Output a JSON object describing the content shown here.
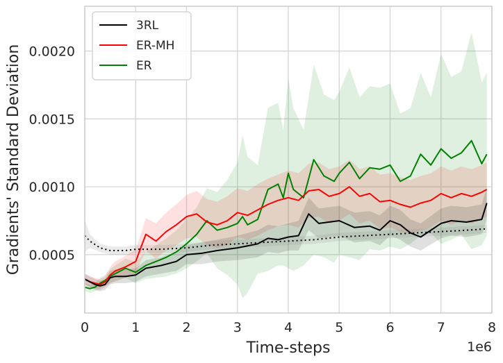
{
  "chart_data": {
    "type": "line",
    "xlabel": "Time-steps",
    "ylabel": "Gradients' Standard Deviation",
    "x_offset_label": "1e6",
    "xlim": [
      0,
      8
    ],
    "ylim": [
      7e-05,
      0.00233
    ],
    "xticks": [
      0,
      1,
      2,
      3,
      4,
      5,
      6,
      7,
      8
    ],
    "xtick_labels": [
      "0",
      "1",
      "2",
      "3",
      "4",
      "5",
      "6",
      "7",
      "8"
    ],
    "yticks": [
      0.0005,
      0.001,
      0.0015,
      0.002
    ],
    "ytick_labels": [
      "0.0005",
      "0.0010",
      "0.0015",
      "0.0020"
    ],
    "grid": true,
    "legend_position": "top-left",
    "series": [
      {
        "name": "3RL",
        "color": "#000000",
        "x": [
          0,
          0.1,
          0.2,
          0.3,
          0.4,
          0.5,
          0.6,
          0.8,
          1.0,
          1.2,
          1.5,
          1.8,
          2.0,
          2.3,
          2.6,
          3.0,
          3.4,
          3.6,
          3.8,
          4.0,
          4.2,
          4.4,
          4.6,
          5.0,
          5.3,
          5.6,
          5.8,
          6.0,
          6.2,
          6.4,
          6.6,
          7.0,
          7.2,
          7.5,
          7.8,
          7.9
        ],
        "values": [
          0.00032,
          0.0003,
          0.00028,
          0.00027,
          0.00028,
          0.00033,
          0.00034,
          0.00034,
          0.00035,
          0.0004,
          0.00042,
          0.00045,
          0.0005,
          0.00051,
          0.00053,
          0.00055,
          0.00058,
          0.00062,
          0.00061,
          0.00063,
          0.00064,
          0.0008,
          0.00073,
          0.00075,
          0.0007,
          0.00071,
          0.00068,
          0.00075,
          0.00072,
          0.00066,
          0.00063,
          0.00073,
          0.00075,
          0.00074,
          0.00076,
          0.00088
        ],
        "band": [
          4e-05,
          4e-05,
          4e-05,
          4e-05,
          4e-05,
          5e-05,
          5e-05,
          5e-05,
          5e-05,
          6e-05,
          6e-05,
          7e-05,
          7e-05,
          8e-05,
          8e-05,
          9e-05,
          0.0001,
          0.0001,
          0.0001,
          0.0001,
          0.00011,
          0.00012,
          0.00011,
          0.00011,
          0.00011,
          0.00011,
          0.00011,
          0.00011,
          0.00011,
          0.0001,
          0.0001,
          0.00011,
          0.00011,
          0.00011,
          0.00011,
          0.00012
        ]
      },
      {
        "name": "3RL (dotted)",
        "color": "#000000",
        "dashed": true,
        "x": [
          0,
          0.1,
          0.3,
          0.5,
          0.8,
          1.0,
          1.5,
          2.0,
          2.5,
          3.0,
          3.5,
          4.0,
          4.5,
          5.0,
          5.5,
          6.0,
          6.5,
          7.0,
          7.5,
          7.9
        ],
        "values": [
          0.00064,
          0.0006,
          0.00055,
          0.00053,
          0.00053,
          0.00054,
          0.00054,
          0.00055,
          0.00057,
          0.00058,
          0.00059,
          0.0006,
          0.00061,
          0.00063,
          0.00064,
          0.00065,
          0.00066,
          0.00067,
          0.00068,
          0.00069
        ],
        "band": [
          0.00012,
          5e-05,
          3e-05,
          3e-05,
          3e-05,
          3e-05,
          3e-05,
          3e-05,
          3e-05,
          3e-05,
          3e-05,
          3e-05,
          3e-05,
          3e-05,
          3e-05,
          3e-05,
          3e-05,
          3e-05,
          3e-05,
          3e-05
        ]
      },
      {
        "name": "ER-MH",
        "color": "#ff0000",
        "x": [
          0,
          0.1,
          0.2,
          0.3,
          0.4,
          0.5,
          0.6,
          0.8,
          1.0,
          1.1,
          1.2,
          1.4,
          1.6,
          1.8,
          2.0,
          2.2,
          2.4,
          2.6,
          2.8,
          3.0,
          3.2,
          3.4,
          3.6,
          3.8,
          4.0,
          4.2,
          4.4,
          4.6,
          4.8,
          5.0,
          5.2,
          5.4,
          5.6,
          5.8,
          6.0,
          6.2,
          6.4,
          6.6,
          6.8,
          7.0,
          7.2,
          7.4,
          7.6,
          7.8,
          7.9
        ],
        "values": [
          0.00032,
          0.0003,
          0.00029,
          0.00028,
          0.0003,
          0.00035,
          0.00038,
          0.00041,
          0.00045,
          0.00055,
          0.00065,
          0.0006,
          0.00067,
          0.00072,
          0.00078,
          0.0008,
          0.00074,
          0.00072,
          0.00075,
          0.00081,
          0.00079,
          0.00083,
          0.00087,
          0.0009,
          0.00092,
          0.0009,
          0.00097,
          0.00098,
          0.00093,
          0.00095,
          0.001,
          0.00093,
          0.00095,
          0.00089,
          0.0009,
          0.00087,
          0.00085,
          0.00088,
          0.0009,
          0.00095,
          0.00092,
          0.00095,
          0.00093,
          0.00096,
          0.00098
        ],
        "band": [
          4e-05,
          4e-05,
          4e-05,
          4e-05,
          4e-05,
          6e-05,
          7e-05,
          8e-05,
          9e-05,
          0.0001,
          0.00012,
          0.00013,
          0.00014,
          0.00015,
          0.00016,
          0.00017,
          0.00017,
          0.00017,
          0.00018,
          0.00018,
          0.00018,
          0.00019,
          0.00019,
          0.00019,
          0.0002,
          0.0002,
          0.0002,
          0.0002,
          0.0002,
          0.0002,
          0.0002,
          0.0002,
          0.0002,
          0.0002,
          0.0002,
          0.0002,
          0.0002,
          0.0002,
          0.0002,
          0.0002,
          0.0002,
          0.0002,
          0.0002,
          0.0002,
          0.0002
        ]
      },
      {
        "name": "ER",
        "color": "#008000",
        "x": [
          0,
          0.1,
          0.2,
          0.3,
          0.4,
          0.5,
          0.6,
          0.8,
          1.0,
          1.2,
          1.4,
          1.6,
          1.8,
          2.0,
          2.2,
          2.4,
          2.6,
          2.8,
          3.0,
          3.1,
          3.2,
          3.4,
          3.6,
          3.8,
          3.9,
          4.0,
          4.1,
          4.3,
          4.5,
          4.7,
          4.9,
          5.0,
          5.2,
          5.4,
          5.6,
          5.8,
          6.0,
          6.2,
          6.4,
          6.6,
          6.8,
          7.0,
          7.2,
          7.4,
          7.6,
          7.8,
          7.9
        ],
        "values": [
          0.00026,
          0.00025,
          0.00026,
          0.00029,
          0.00031,
          0.00034,
          0.00036,
          0.0004,
          0.00037,
          0.00042,
          0.00045,
          0.00048,
          0.00052,
          0.00058,
          0.00065,
          0.00075,
          0.00068,
          0.0007,
          0.00073,
          0.00078,
          0.00072,
          0.00076,
          0.00098,
          0.00102,
          0.00092,
          0.0011,
          0.00098,
          0.00092,
          0.0012,
          0.00108,
          0.00104,
          0.0011,
          0.00118,
          0.00106,
          0.00114,
          0.00113,
          0.00116,
          0.00104,
          0.00108,
          0.00124,
          0.00116,
          0.00128,
          0.00121,
          0.00125,
          0.00134,
          0.00117,
          0.00124
        ],
        "band": [
          3e-05,
          3e-05,
          3e-05,
          4e-05,
          4e-05,
          5e-05,
          6e-05,
          7e-05,
          8e-05,
          0.0001,
          0.00012,
          0.00014,
          0.00016,
          0.00018,
          0.0002,
          0.00024,
          0.00028,
          0.00035,
          0.00045,
          0.0006,
          0.0005,
          0.0004,
          0.0006,
          0.0006,
          0.0005,
          0.0007,
          0.0006,
          0.0005,
          0.0007,
          0.0006,
          0.0006,
          0.0006,
          0.0007,
          0.0006,
          0.0006,
          0.0006,
          0.0006,
          0.0005,
          0.0005,
          0.0006,
          0.0005,
          0.0007,
          0.0006,
          0.0006,
          0.0008,
          0.0006,
          0.0006
        ]
      }
    ],
    "legend": [
      {
        "label": "3RL",
        "color": "#000000"
      },
      {
        "label": "ER-MH",
        "color": "#ff0000"
      },
      {
        "label": "ER",
        "color": "#008000"
      }
    ]
  }
}
